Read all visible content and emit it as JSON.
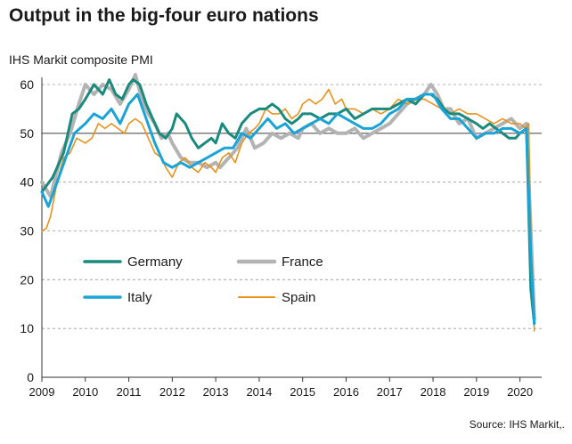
{
  "title": "Output in the big-four euro nations",
  "source": "Source: IHS Markit,.",
  "chart_data": {
    "type": "line",
    "ylabel": "IHS Markit composite PMI",
    "ylim": [
      0,
      60
    ],
    "yticks": [
      0,
      10,
      20,
      30,
      40,
      50,
      60
    ],
    "xlim": [
      2009.0,
      2020.5
    ],
    "xticks": [
      2009,
      2010,
      2011,
      2012,
      2013,
      2014,
      2015,
      2016,
      2017,
      2018,
      2019,
      2020
    ],
    "reference_line": 50,
    "grid": "horizontal dashed",
    "legend": "middle-left",
    "series": [
      {
        "name": "Germany",
        "color": "#1a8a7c",
        "width": 3,
        "x": [
          2009.0,
          2009.25,
          2009.5,
          2009.7,
          2009.85,
          2010.0,
          2010.2,
          2010.4,
          2010.55,
          2010.7,
          2010.85,
          2011.0,
          2011.1,
          2011.25,
          2011.4,
          2011.55,
          2011.7,
          2011.85,
          2012.0,
          2012.1,
          2012.3,
          2012.45,
          2012.6,
          2012.75,
          2012.9,
          2013.0,
          2013.15,
          2013.3,
          2013.45,
          2013.6,
          2013.8,
          2014.0,
          2014.15,
          2014.3,
          2014.45,
          2014.6,
          2014.75,
          2014.9,
          2015.0,
          2015.2,
          2015.4,
          2015.6,
          2015.8,
          2016.0,
          2016.2,
          2016.4,
          2016.6,
          2016.8,
          2017.0,
          2017.2,
          2017.4,
          2017.6,
          2017.8,
          2017.95,
          2018.1,
          2018.25,
          2018.4,
          2018.6,
          2018.8,
          2019.0,
          2019.15,
          2019.3,
          2019.45,
          2019.6,
          2019.75,
          2019.9,
          2020.0,
          2020.15,
          2020.25,
          2020.33
        ],
        "values": [
          38,
          41,
          46,
          54,
          55,
          57,
          60,
          58,
          61,
          58,
          57,
          60,
          61,
          60,
          56,
          53,
          50,
          49,
          51,
          54,
          52,
          49,
          47,
          48,
          49,
          48,
          52,
          50,
          49,
          52,
          54,
          55,
          55,
          56,
          55,
          53,
          52,
          53,
          54,
          54,
          53,
          54,
          54,
          55,
          53,
          54,
          55,
          55,
          55,
          56,
          57,
          56,
          58,
          58,
          57,
          55,
          54,
          54,
          53,
          52,
          51,
          52,
          51,
          50,
          49,
          49,
          50,
          51,
          18,
          11
        ]
      },
      {
        "name": "France",
        "color": "#b3b3b3",
        "width": 4,
        "x": [
          2009.0,
          2009.2,
          2009.45,
          2009.65,
          2009.85,
          2010.0,
          2010.2,
          2010.4,
          2010.6,
          2010.8,
          2011.0,
          2011.15,
          2011.3,
          2011.45,
          2011.6,
          2011.75,
          2011.9,
          2012.0,
          2012.2,
          2012.4,
          2012.6,
          2012.8,
          2013.0,
          2013.1,
          2013.3,
          2013.5,
          2013.7,
          2013.9,
          2014.1,
          2014.3,
          2014.5,
          2014.7,
          2014.9,
          2015.0,
          2015.2,
          2015.4,
          2015.6,
          2015.8,
          2016.0,
          2016.2,
          2016.4,
          2016.6,
          2016.8,
          2017.0,
          2017.2,
          2017.4,
          2017.6,
          2017.8,
          2017.95,
          2018.1,
          2018.25,
          2018.4,
          2018.6,
          2018.8,
          2019.0,
          2019.2,
          2019.4,
          2019.6,
          2019.8,
          2020.0,
          2020.15,
          2020.25,
          2020.33
        ],
        "values": [
          40,
          37,
          46,
          50,
          56,
          60,
          58,
          60,
          59,
          56,
          59,
          62,
          57,
          54,
          52,
          49,
          50,
          48,
          45,
          44,
          44,
          43,
          44,
          43,
          45,
          47,
          51,
          47,
          48,
          50,
          49,
          50,
          49,
          51,
          52,
          50,
          51,
          50,
          50,
          51,
          49,
          50,
          51,
          52,
          54,
          56,
          57,
          58,
          60,
          58,
          55,
          55,
          52,
          53,
          49,
          50,
          51,
          52,
          53,
          51,
          52,
          30,
          12
        ]
      },
      {
        "name": "Italy",
        "color": "#1aa3d6",
        "width": 3,
        "x": [
          2009.0,
          2009.15,
          2009.35,
          2009.55,
          2009.75,
          2010.0,
          2010.2,
          2010.4,
          2010.6,
          2010.8,
          2011.0,
          2011.2,
          2011.4,
          2011.6,
          2011.8,
          2012.0,
          2012.2,
          2012.4,
          2012.6,
          2012.8,
          2013.0,
          2013.2,
          2013.4,
          2013.6,
          2013.8,
          2014.0,
          2014.2,
          2014.4,
          2014.6,
          2014.8,
          2015.0,
          2015.2,
          2015.4,
          2015.6,
          2015.8,
          2016.0,
          2016.2,
          2016.4,
          2016.6,
          2016.8,
          2017.0,
          2017.2,
          2017.4,
          2017.6,
          2017.8,
          2018.0,
          2018.2,
          2018.4,
          2018.6,
          2018.8,
          2019.0,
          2019.2,
          2019.4,
          2019.6,
          2019.8,
          2020.0,
          2020.15,
          2020.25,
          2020.33
        ],
        "values": [
          38,
          35,
          40,
          45,
          50,
          52,
          54,
          53,
          55,
          52,
          56,
          58,
          53,
          48,
          44,
          43,
          44,
          43,
          44,
          45,
          46,
          47,
          47,
          50,
          49,
          51,
          53,
          51,
          52,
          50,
          51,
          52,
          53,
          52,
          54,
          53,
          52,
          51,
          51,
          52,
          54,
          55,
          57,
          57,
          58,
          58,
          55,
          53,
          53,
          51,
          49,
          50,
          50,
          51,
          51,
          50,
          51,
          25,
          11
        ]
      },
      {
        "name": "Spain",
        "color": "#e8921c",
        "width": 1.6,
        "x": [
          2009.0,
          2009.1,
          2009.2,
          2009.35,
          2009.5,
          2009.65,
          2009.8,
          2010.0,
          2010.15,
          2010.3,
          2010.45,
          2010.6,
          2010.75,
          2010.9,
          2011.0,
          2011.15,
          2011.3,
          2011.45,
          2011.6,
          2011.75,
          2011.85,
          2012.0,
          2012.15,
          2012.3,
          2012.45,
          2012.6,
          2012.75,
          2012.9,
          2013.0,
          2013.15,
          2013.3,
          2013.45,
          2013.6,
          2013.75,
          2013.9,
          2014.0,
          2014.15,
          2014.3,
          2014.45,
          2014.6,
          2014.75,
          2014.9,
          2015.0,
          2015.15,
          2015.3,
          2015.45,
          2015.6,
          2015.75,
          2015.9,
          2016.0,
          2016.2,
          2016.4,
          2016.6,
          2016.8,
          2017.0,
          2017.2,
          2017.4,
          2017.6,
          2017.8,
          2018.0,
          2018.2,
          2018.4,
          2018.6,
          2018.8,
          2019.0,
          2019.2,
          2019.4,
          2019.6,
          2019.8,
          2020.0,
          2020.12,
          2020.2,
          2020.27,
          2020.33
        ],
        "values": [
          30,
          30.5,
          33,
          40,
          45,
          46,
          49,
          48,
          49,
          52,
          51,
          52,
          51,
          50,
          52,
          53,
          52,
          49,
          46,
          45,
          43,
          41,
          44,
          45,
          43,
          42,
          44,
          43,
          42,
          45,
          46,
          44,
          48,
          50,
          51,
          52,
          55,
          54,
          54,
          55,
          53,
          54,
          56,
          57,
          56,
          57,
          59,
          56,
          57,
          55,
          55,
          54,
          55,
          54,
          55,
          57,
          56,
          57,
          57,
          56,
          55,
          54,
          55,
          54,
          54,
          53,
          52,
          53,
          52,
          52,
          51,
          52,
          20,
          9.5
        ]
      }
    ]
  }
}
